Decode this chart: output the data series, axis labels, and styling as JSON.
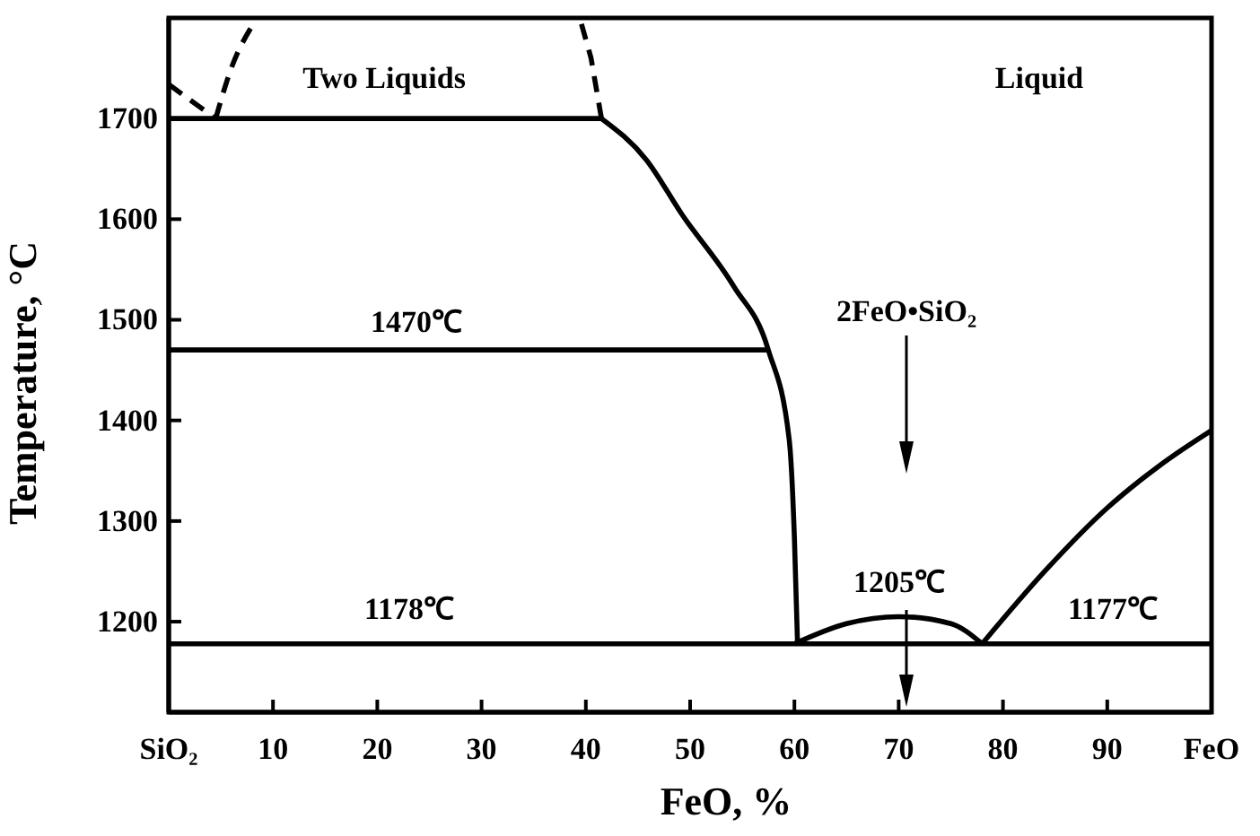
{
  "chart_data": {
    "type": "line",
    "xlabel": "FeO, %",
    "ylabel": "Temperature, °C",
    "xlim": [
      0,
      100
    ],
    "ylim": [
      1110,
      1800
    ],
    "xticks": [
      {
        "value": 0,
        "label": "SiO₂"
      },
      10,
      20,
      30,
      40,
      50,
      60,
      70,
      80,
      90,
      {
        "value": 100,
        "label": "FeO"
      }
    ],
    "yticks": [
      1200,
      1300,
      1400,
      1500,
      1600,
      1700
    ],
    "marker": "none",
    "series": [
      {
        "color": "#000000",
        "line_style": "dashed",
        "x": [
          0,
          4.5
        ],
        "values": [
          1734,
          1700
        ]
      },
      {
        "color": "#000000",
        "line_style": "dashed",
        "x": [
          4.5,
          6,
          8.3
        ],
        "values": [
          1700,
          1750,
          1797
        ]
      },
      {
        "color": "#000000",
        "line_style": "dashed",
        "x": [
          41.5,
          40.5,
          39.5
        ],
        "values": [
          1700,
          1760,
          1797
        ]
      },
      {
        "color": "#000000",
        "line_style": "solid",
        "x": [
          0,
          41.5
        ],
        "values": [
          1700,
          1700
        ]
      },
      {
        "color": "#000000",
        "line_style": "solid",
        "x": [
          41.5,
          45.8,
          49.2,
          54.2,
          57.5,
          59.5,
          60,
          60.3
        ],
        "values": [
          1700,
          1659,
          1605,
          1533,
          1470,
          1381,
          1283,
          1178
        ]
      },
      {
        "color": "#000000",
        "line_style": "solid",
        "x": [
          0,
          57.5
        ],
        "values": [
          1470,
          1470
        ]
      },
      {
        "color": "#000000",
        "line_style": "solid",
        "x": [
          0,
          100
        ],
        "values": [
          1178,
          1178
        ]
      },
      {
        "color": "#000000",
        "line_style": "solid",
        "x": [
          60,
          65,
          70,
          75,
          78
        ],
        "values": [
          1178,
          1198,
          1205,
          1198,
          1178
        ]
      },
      {
        "color": "#000000",
        "line_style": "solid",
        "x": [
          78,
          84,
          90,
          95,
          100
        ],
        "values": [
          1178,
          1250,
          1313,
          1355,
          1390
        ]
      }
    ],
    "annotations": [
      "Two Liquids",
      "Liquid",
      "1470℃",
      "1178℃",
      "1205℃",
      "1177℃",
      "2FeO•SiO₂"
    ]
  }
}
